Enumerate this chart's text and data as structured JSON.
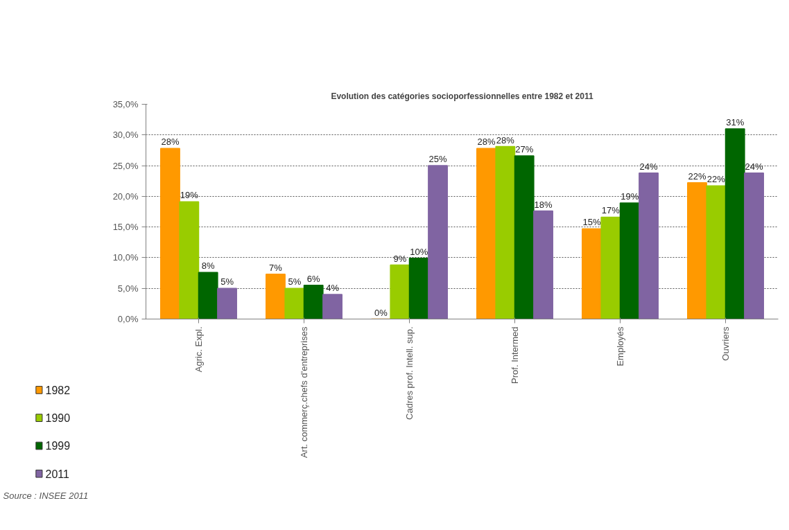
{
  "chart_data": {
    "type": "bar",
    "title": "Evolution des catégories socioporfessionnelles entre 1982 et 2011",
    "categories": [
      "Agric. Expl.",
      "Art. commerç.chefs d'entreprises",
      "Cadres prof. Intell. sup.",
      "Prof. Intermed",
      "Employés",
      "Ouvriers"
    ],
    "series": [
      {
        "name": "1982",
        "color": "#ff9900",
        "values": [
          27.8,
          7.3,
          0,
          27.8,
          14.7,
          22.2
        ],
        "value_labels": [
          "28%",
          "7%",
          "0%",
          "28%",
          "15%",
          "22%"
        ]
      },
      {
        "name": "1990",
        "color": "#99cc00",
        "values": [
          19.1,
          5.0,
          8.8,
          28.1,
          16.6,
          21.7
        ],
        "value_labels": [
          "19%",
          "5%",
          "9%",
          "28%",
          "17%",
          "22%"
        ]
      },
      {
        "name": "1999",
        "color": "#006600",
        "values": [
          7.6,
          5.5,
          9.9,
          26.6,
          18.9,
          31.0
        ],
        "value_labels": [
          "8%",
          "6%",
          "10%",
          "27%",
          "19%",
          "31%"
        ]
      },
      {
        "name": "2011",
        "color": "#8064a2",
        "values": [
          5.0,
          4.0,
          25.0,
          17.6,
          23.8,
          23.8
        ],
        "value_labels": [
          "5%",
          "4%",
          "25%",
          "18%",
          "24%",
          "24%"
        ]
      }
    ],
    "ylim": [
      0,
      35
    ],
    "yticks": [
      {
        "value": 0,
        "label": "0,0%"
      },
      {
        "value": 5,
        "label": "5,0%"
      },
      {
        "value": 10,
        "label": "10,0%"
      },
      {
        "value": 15,
        "label": "15,0%"
      },
      {
        "value": 20,
        "label": "20,0%"
      },
      {
        "value": 25,
        "label": "25,0%"
      },
      {
        "value": 30,
        "label": "30,0%"
      },
      {
        "value": 35,
        "label": "35,0%"
      }
    ],
    "grid": "y",
    "legend": "bottom left",
    "annotations": [
      "Source : INSEE 2011"
    ]
  }
}
